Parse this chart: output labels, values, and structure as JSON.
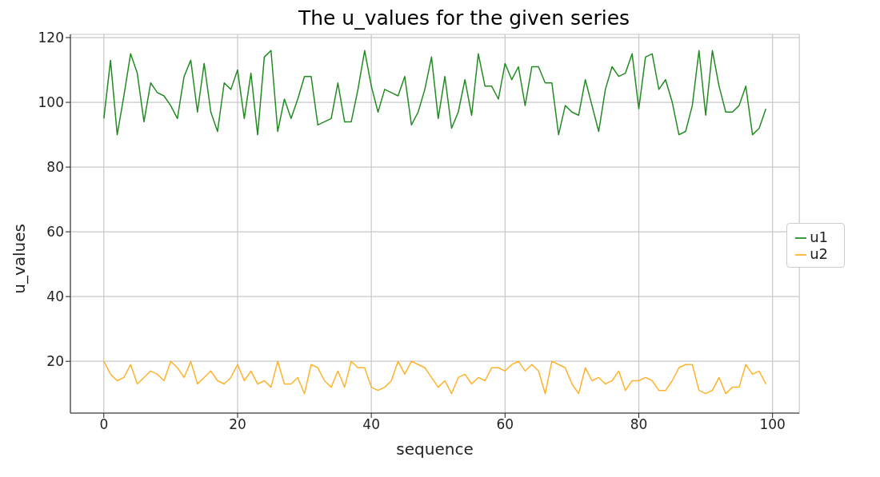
{
  "chart_data": {
    "type": "line",
    "title": "The u_values for the given series",
    "xlabel": "sequence",
    "ylabel": "u_values",
    "x": [
      0,
      1,
      2,
      3,
      4,
      5,
      6,
      7,
      8,
      9,
      10,
      11,
      12,
      13,
      14,
      15,
      16,
      17,
      18,
      19,
      20,
      21,
      22,
      23,
      24,
      25,
      26,
      27,
      28,
      29,
      30,
      31,
      32,
      33,
      34,
      35,
      36,
      37,
      38,
      39,
      40,
      41,
      42,
      43,
      44,
      45,
      46,
      47,
      48,
      49,
      50,
      51,
      52,
      53,
      54,
      55,
      56,
      57,
      58,
      59,
      60,
      61,
      62,
      63,
      64,
      65,
      66,
      67,
      68,
      69,
      70,
      71,
      72,
      73,
      74,
      75,
      76,
      77,
      78,
      79,
      80,
      81,
      82,
      83,
      84,
      85,
      86,
      87,
      88,
      89,
      90,
      91,
      92,
      93,
      94,
      95,
      96,
      97,
      98,
      99
    ],
    "series": [
      {
        "name": "u1",
        "color": "#228b22",
        "values": [
          95,
          113,
          90,
          102,
          115,
          109,
          94,
          106,
          103,
          102,
          99,
          95,
          108,
          113,
          97,
          112,
          97,
          91,
          106,
          104,
          110,
          95,
          109,
          90,
          114,
          116,
          91,
          101,
          95,
          101,
          108,
          108,
          93,
          94,
          95,
          106,
          94,
          94,
          104,
          116,
          105,
          97,
          104,
          103,
          102,
          108,
          93,
          97,
          104,
          114,
          95,
          108,
          92,
          97,
          107,
          96,
          115,
          105,
          105,
          101,
          112,
          107,
          111,
          99,
          111,
          111,
          106,
          106,
          90,
          99,
          97,
          96,
          107,
          99,
          91,
          104,
          111,
          108,
          109,
          115,
          98,
          114,
          115,
          104,
          107,
          100,
          90,
          91,
          99,
          116,
          96,
          116,
          105,
          97,
          97,
          99,
          105,
          90,
          92,
          98
        ]
      },
      {
        "name": "u2",
        "color": "#ffb22c",
        "values": [
          20,
          16,
          14,
          15,
          19,
          13,
          15,
          17,
          16,
          14,
          20,
          18,
          15,
          20,
          13,
          15,
          17,
          14,
          13,
          15,
          19,
          14,
          17,
          13,
          14,
          12,
          20,
          13,
          13,
          15,
          10,
          19,
          18,
          14,
          12,
          17,
          12,
          20,
          18,
          18,
          12,
          11,
          12,
          14,
          20,
          16,
          20,
          19,
          18,
          15,
          12,
          14,
          10,
          15,
          16,
          13,
          15,
          14,
          18,
          18,
          17,
          19,
          20,
          17,
          19,
          17,
          10,
          20,
          19,
          18,
          13,
          10,
          18,
          14,
          15,
          13,
          14,
          17,
          11,
          14,
          14,
          15,
          14,
          11,
          11,
          14,
          18,
          19,
          19,
          11,
          10,
          11,
          15,
          10,
          12,
          12,
          19,
          16,
          17,
          13
        ]
      }
    ],
    "xlim": [
      -5,
      104
    ],
    "xticks": [
      0,
      20,
      40,
      60,
      80,
      100
    ],
    "ylim": [
      4,
      121
    ],
    "yticks": [
      20,
      40,
      60,
      80,
      100,
      120
    ],
    "grid": true,
    "legend": "right"
  }
}
